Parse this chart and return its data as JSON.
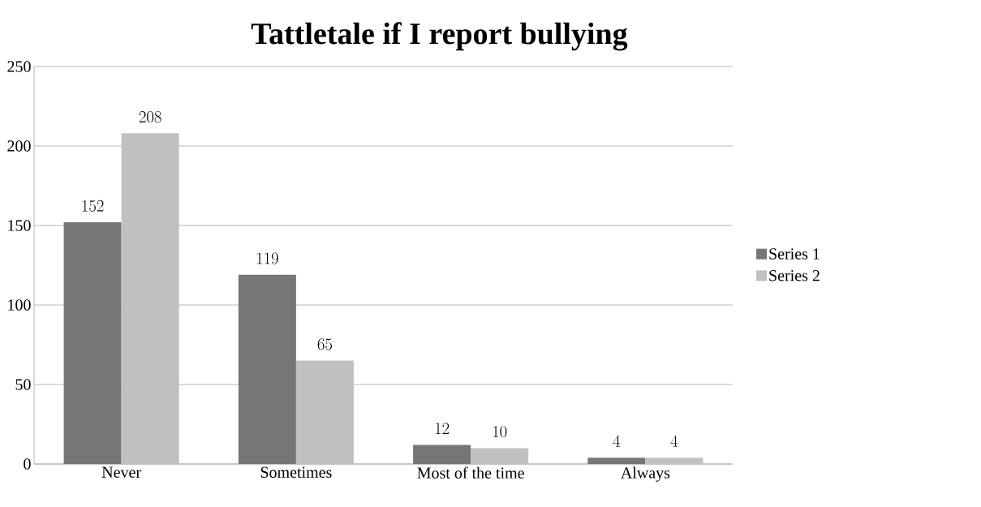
{
  "chart_data": {
    "type": "bar",
    "title": "Tattletale if I report bullying",
    "categories": [
      "Never",
      "Sometimes",
      "Most of the time",
      "Always"
    ],
    "series": [
      {
        "name": "Series 1",
        "color": "#767676",
        "values": [
          152,
          119,
          12,
          4
        ]
      },
      {
        "name": "Series 2",
        "color": "#c0c0c0",
        "values": [
          208,
          65,
          10,
          4
        ]
      }
    ],
    "ylim": [
      0,
      250
    ],
    "yticks": [
      0,
      50,
      100,
      150,
      200,
      250
    ],
    "grid": "y",
    "legend": "right",
    "data_labels": true
  }
}
